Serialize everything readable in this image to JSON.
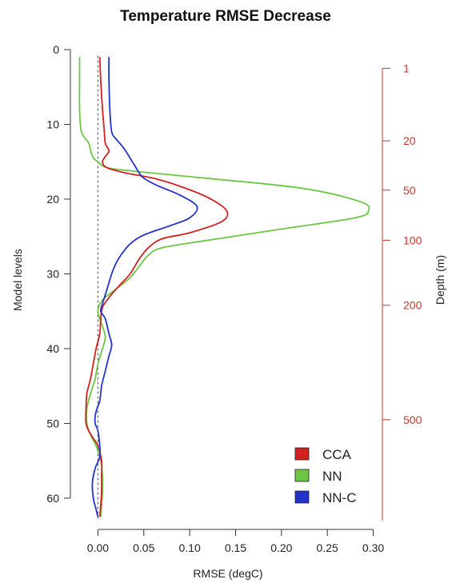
{
  "chart_data": {
    "type": "line",
    "title": "Temperature RMSE Decrease",
    "xlabel": "RMSE (degC)",
    "ylabel": "Model levels",
    "y2label": "Depth (m)",
    "xlim": [
      -0.03,
      0.31
    ],
    "ylim": [
      0,
      63
    ],
    "y_inverted": true,
    "x_ticks": [
      0.0,
      0.05,
      0.1,
      0.15,
      0.2,
      0.25,
      0.3
    ],
    "x_tick_labels": [
      "0.00",
      "0.05",
      "0.10",
      "0.15",
      "0.20",
      "0.25",
      "0.30"
    ],
    "y_ticks": [
      0,
      10,
      20,
      30,
      40,
      50,
      60
    ],
    "y_tick_labels": [
      "0",
      "10",
      "20",
      "30",
      "40",
      "50",
      "60"
    ],
    "y2_ticks": [
      {
        "label": "1",
        "level": 2.5
      },
      {
        "label": "20",
        "level": 12.2
      },
      {
        "label": "50",
        "level": 18.8
      },
      {
        "label": "100",
        "level": 25.5
      },
      {
        "label": "200",
        "level": 34.2
      },
      {
        "label": "500",
        "level": 49.5
      }
    ],
    "reference_line_x": 0,
    "grid": false,
    "legend_position": "bottom-right",
    "colors": {
      "axis": "#333333",
      "depth_axis": "#c0392b",
      "reference": "#666666"
    },
    "series": [
      {
        "name": "CCA",
        "color": "#d32020",
        "points": [
          [
            0.002,
            1
          ],
          [
            0.003,
            4
          ],
          [
            0.005,
            8
          ],
          [
            0.007,
            11
          ],
          [
            0.008,
            12.5
          ],
          [
            0.012,
            13.5
          ],
          [
            0.01,
            14
          ],
          [
            0.005,
            15
          ],
          [
            0.01,
            15.8
          ],
          [
            0.03,
            16.5
          ],
          [
            0.06,
            17.2
          ],
          [
            0.09,
            18.3
          ],
          [
            0.12,
            19.8
          ],
          [
            0.14,
            21.5
          ],
          [
            0.135,
            23
          ],
          [
            0.1,
            24.5
          ],
          [
            0.07,
            25.3
          ],
          [
            0.055,
            26.5
          ],
          [
            0.045,
            28
          ],
          [
            0.035,
            30
          ],
          [
            0.02,
            32
          ],
          [
            0.01,
            33.5
          ],
          [
            0.005,
            34.5
          ],
          [
            0.003,
            36
          ],
          [
            0.002,
            38
          ],
          [
            -0.002,
            40
          ],
          [
            -0.005,
            42
          ],
          [
            -0.008,
            44
          ],
          [
            -0.012,
            46
          ],
          [
            -0.013,
            48
          ],
          [
            -0.013,
            50
          ],
          [
            -0.01,
            51
          ],
          [
            -0.005,
            52
          ],
          [
            0.0,
            53
          ],
          [
            0.004,
            55
          ],
          [
            0.004,
            57
          ],
          [
            0.004,
            59
          ],
          [
            0.003,
            61
          ],
          [
            0.002,
            62.5
          ]
        ]
      },
      {
        "name": "NN",
        "color": "#6cc644",
        "points": [
          [
            -0.02,
            1
          ],
          [
            -0.02,
            4
          ],
          [
            -0.02,
            8
          ],
          [
            -0.018,
            11
          ],
          [
            -0.01,
            12.5
          ],
          [
            -0.008,
            13.5
          ],
          [
            -0.005,
            14.5
          ],
          [
            0.0,
            15
          ],
          [
            0.005,
            15.5
          ],
          [
            0.02,
            16
          ],
          [
            0.1,
            17
          ],
          [
            0.22,
            18.5
          ],
          [
            0.285,
            20.3
          ],
          [
            0.295,
            21.5
          ],
          [
            0.28,
            22.5
          ],
          [
            0.2,
            24
          ],
          [
            0.12,
            25.5
          ],
          [
            0.07,
            26.5
          ],
          [
            0.055,
            27.5
          ],
          [
            0.045,
            29
          ],
          [
            0.035,
            30.5
          ],
          [
            0.02,
            32
          ],
          [
            0.005,
            33.5
          ],
          [
            0.0,
            35
          ],
          [
            0.005,
            37
          ],
          [
            0.008,
            38.5
          ],
          [
            0.005,
            40
          ],
          [
            0.0,
            42
          ],
          [
            -0.003,
            44
          ],
          [
            -0.008,
            46
          ],
          [
            -0.012,
            48
          ],
          [
            -0.012,
            50
          ],
          [
            -0.008,
            51.5
          ],
          [
            -0.002,
            53
          ],
          [
            0.003,
            55
          ],
          [
            0.005,
            57
          ],
          [
            0.005,
            59
          ],
          [
            0.004,
            61
          ],
          [
            0.003,
            62.5
          ]
        ]
      },
      {
        "name": "NN-C",
        "color": "#2233cc",
        "points": [
          [
            0.012,
            1
          ],
          [
            0.012,
            4
          ],
          [
            0.013,
            8
          ],
          [
            0.015,
            11
          ],
          [
            0.02,
            12
          ],
          [
            0.025,
            12.7
          ],
          [
            0.03,
            13.5
          ],
          [
            0.035,
            14.5
          ],
          [
            0.04,
            15.5
          ],
          [
            0.045,
            16.5
          ],
          [
            0.05,
            17.2
          ],
          [
            0.065,
            18.2
          ],
          [
            0.09,
            19.5
          ],
          [
            0.108,
            21
          ],
          [
            0.1,
            22.5
          ],
          [
            0.08,
            23.5
          ],
          [
            0.05,
            24.8
          ],
          [
            0.035,
            26
          ],
          [
            0.025,
            27.5
          ],
          [
            0.02,
            28.5
          ],
          [
            0.015,
            30
          ],
          [
            0.01,
            32
          ],
          [
            0.005,
            34
          ],
          [
            0.003,
            35
          ],
          [
            0.008,
            36
          ],
          [
            0.012,
            38
          ],
          [
            0.015,
            39.5
          ],
          [
            0.012,
            41
          ],
          [
            0.008,
            43
          ],
          [
            0.004,
            45
          ],
          [
            0.002,
            47
          ],
          [
            -0.001,
            48
          ],
          [
            -0.003,
            49
          ],
          [
            -0.003,
            50
          ],
          [
            0.0,
            51
          ],
          [
            0.002,
            53
          ],
          [
            0.002,
            54.5
          ],
          [
            -0.003,
            56
          ],
          [
            -0.006,
            58
          ],
          [
            -0.005,
            60
          ],
          [
            -0.002,
            61.5
          ],
          [
            0.0,
            62.5
          ]
        ]
      }
    ]
  }
}
